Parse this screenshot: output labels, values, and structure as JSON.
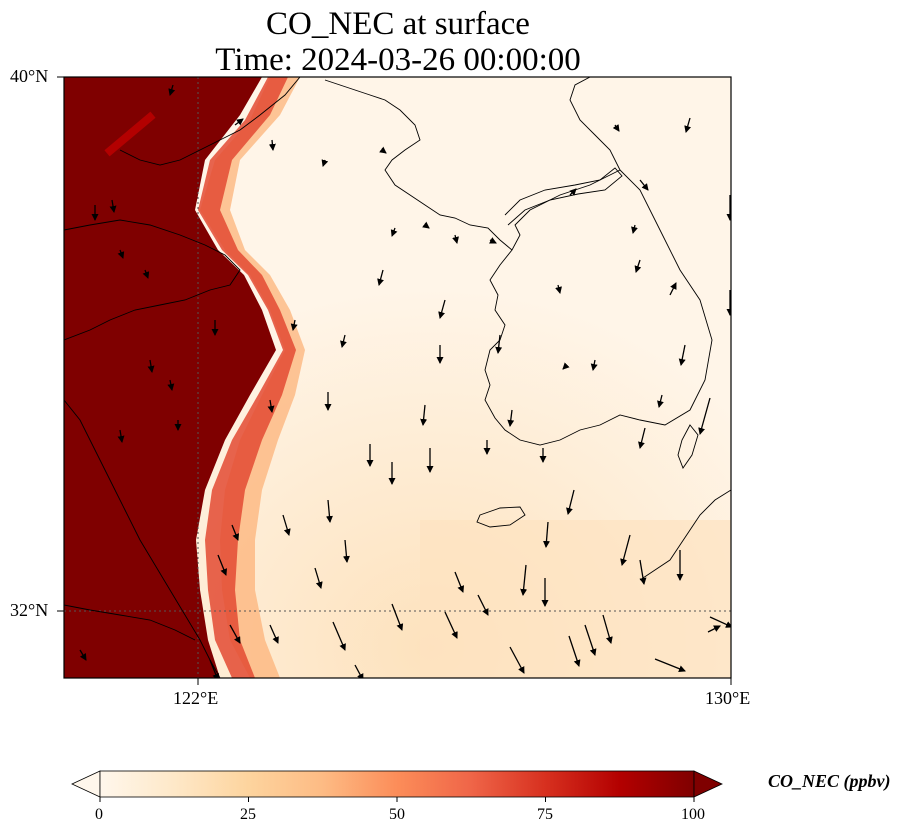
{
  "title": {
    "line1": "CO_NEC at surface",
    "line2": "Time: 2024-03-26 00:00:00"
  },
  "axes": {
    "lat_labels": [
      "40°N",
      "32°N"
    ],
    "lon_labels": [
      "122°E",
      "130°E"
    ],
    "extent": {
      "lon_min": 120,
      "lon_max": 130,
      "lat_min": 31,
      "lat_max": 40
    }
  },
  "colorbar": {
    "label": "CO_NEC (ppbv)",
    "ticks": [
      "0",
      "25",
      "50",
      "75",
      "100"
    ],
    "range": [
      0,
      100
    ],
    "colormap": "OrRd",
    "extend": "both",
    "colors": [
      "#fff7ec",
      "#fee8c8",
      "#fdd49e",
      "#fdbb84",
      "#fc8d59",
      "#ef6548",
      "#d7301f",
      "#b30000",
      "#7f0000"
    ]
  },
  "gridlines": {
    "lat": [
      32
    ],
    "lon": [
      122
    ]
  },
  "layers": [
    "CO concentration field",
    "wind vectors",
    "coastlines"
  ]
}
